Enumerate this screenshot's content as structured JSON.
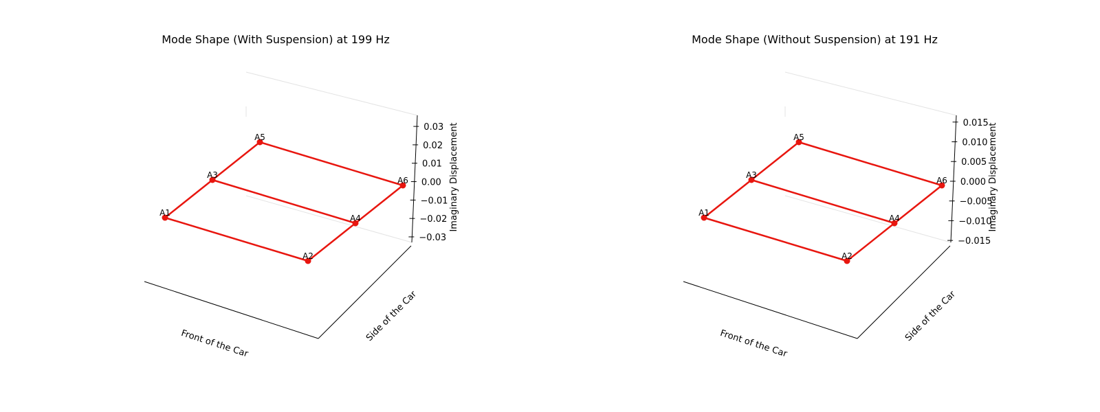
{
  "chart_data": [
    {
      "type": "line3d",
      "title": "Mode Shape (With Suspension) at 199 Hz",
      "xlabel": "Front of the Car",
      "ylabel": "Side of the Car",
      "zlabel": "Imaginary Displacement",
      "labels": [
        "A1",
        "A2",
        "A3",
        "A4",
        "A5",
        "A6"
      ],
      "x": [
        0,
        1,
        0,
        1,
        0,
        1
      ],
      "y": [
        0,
        0,
        1,
        1,
        2,
        2
      ],
      "values": [
        0,
        0,
        0,
        0,
        0,
        0
      ],
      "color": "#e8160f",
      "zlim": [
        -0.033,
        0.036
      ],
      "zticks": [
        {
          "value": -0.03,
          "label": "−0.03"
        },
        {
          "value": -0.02,
          "label": "−0.02"
        },
        {
          "value": -0.01,
          "label": "−0.01"
        },
        {
          "value": 0,
          "label": "0.00"
        },
        0.01,
        0.02,
        0.03
      ]
    },
    {
      "type": "line3d",
      "title": "Mode Shape (Without Suspension) at 191 Hz",
      "xlabel": "Front of the Car",
      "ylabel": "Side of the Car",
      "zlabel": "Imaginary Displacement",
      "labels": [
        "A1",
        "A2",
        "A3",
        "A4",
        "A5",
        "A6"
      ],
      "x": [
        0,
        1,
        0,
        1,
        0,
        1
      ],
      "y": [
        0,
        0,
        1,
        1,
        2,
        2
      ],
      "values": [
        0,
        0,
        0,
        0,
        0,
        0
      ],
      "color": "#e8160f",
      "zlim": [
        -0.0155,
        0.0167
      ],
      "zticks": [
        {
          "value": -0.015,
          "label": "−0.015"
        },
        {
          "value": -0.01,
          "label": "−0.010"
        },
        {
          "value": -0.005,
          "label": "−0.005"
        },
        {
          "value": 0,
          "label": "0.000"
        },
        0.005,
        {
          "value": 0.01,
          "label": "0.010"
        },
        0.015
      ]
    }
  ]
}
